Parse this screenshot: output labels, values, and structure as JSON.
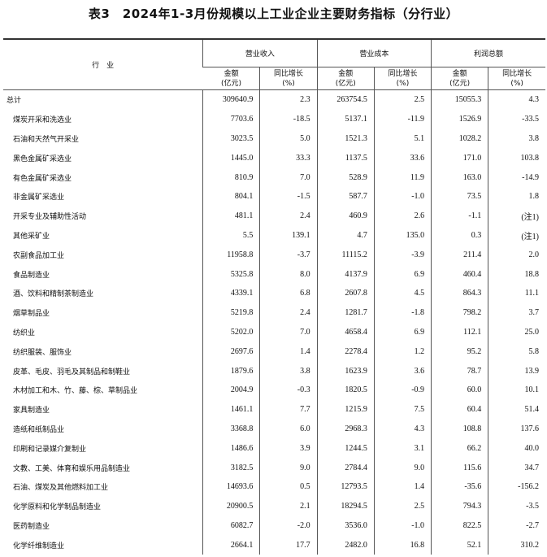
{
  "title": "表3　2024年1-3月份规模以上工业企业主要财务指标（分行业）",
  "header": {
    "industry": "行　业",
    "groups": [
      "营业收入",
      "营业成本",
      "利润总额"
    ],
    "amount": "金额",
    "amount_unit": "(亿元)",
    "growth": "同比增长",
    "growth_unit": "(%)"
  },
  "rows": [
    [
      "总计",
      "309640.9",
      "2.3",
      "263754.5",
      "2.5",
      "15055.3",
      "4.3"
    ],
    [
      "煤炭开采和洗选业",
      "7703.6",
      "-18.5",
      "5137.1",
      "-11.9",
      "1526.9",
      "-33.5"
    ],
    [
      "石油和天然气开采业",
      "3023.5",
      "5.0",
      "1521.3",
      "5.1",
      "1028.2",
      "3.8"
    ],
    [
      "黑色金属矿采选业",
      "1445.0",
      "33.3",
      "1137.5",
      "33.6",
      "171.0",
      "103.8"
    ],
    [
      "有色金属矿采选业",
      "810.9",
      "7.0",
      "528.9",
      "11.9",
      "163.0",
      "-14.9"
    ],
    [
      "非金属矿采选业",
      "804.1",
      "-1.5",
      "587.7",
      "-1.0",
      "73.5",
      "1.8"
    ],
    [
      "开采专业及辅助性活动",
      "481.1",
      "2.4",
      "460.9",
      "2.6",
      "-1.1",
      "(注1)"
    ],
    [
      "其他采矿业",
      "5.5",
      "139.1",
      "4.7",
      "135.0",
      "0.3",
      "(注1)"
    ],
    [
      "农副食品加工业",
      "11958.8",
      "-3.7",
      "11115.2",
      "-3.9",
      "211.4",
      "2.0"
    ],
    [
      "食品制造业",
      "5325.8",
      "8.0",
      "4137.9",
      "6.9",
      "460.4",
      "18.8"
    ],
    [
      "酒、饮料和精制茶制造业",
      "4339.1",
      "6.8",
      "2607.8",
      "4.5",
      "864.3",
      "11.1"
    ],
    [
      "烟草制品业",
      "5219.8",
      "2.4",
      "1281.7",
      "-1.8",
      "798.2",
      "3.7"
    ],
    [
      "纺织业",
      "5202.0",
      "7.0",
      "4658.4",
      "6.9",
      "112.1",
      "25.0"
    ],
    [
      "纺织服装、服饰业",
      "2697.6",
      "1.4",
      "2278.4",
      "1.2",
      "95.2",
      "5.8"
    ],
    [
      "皮革、毛皮、羽毛及其制品和制鞋业",
      "1879.6",
      "3.8",
      "1623.9",
      "3.6",
      "78.7",
      "13.9"
    ],
    [
      "木材加工和木、竹、藤、棕、草制品业",
      "2004.9",
      "-0.3",
      "1820.5",
      "-0.9",
      "60.0",
      "10.1"
    ],
    [
      "家具制造业",
      "1461.1",
      "7.7",
      "1215.9",
      "7.5",
      "60.4",
      "51.4"
    ],
    [
      "造纸和纸制品业",
      "3368.8",
      "6.0",
      "2968.3",
      "4.3",
      "108.8",
      "137.6"
    ],
    [
      "印刷和记录媒介复制业",
      "1486.6",
      "3.9",
      "1244.5",
      "3.1",
      "66.2",
      "40.0"
    ],
    [
      "文教、工美、体育和娱乐用品制造业",
      "3182.5",
      "9.0",
      "2784.4",
      "9.0",
      "115.6",
      "34.7"
    ],
    [
      "石油、煤炭及其他燃料加工业",
      "14693.6",
      "0.5",
      "12793.5",
      "1.4",
      "-35.6",
      "-156.2"
    ],
    [
      "化学原料和化学制品制造业",
      "20900.5",
      "2.1",
      "18294.5",
      "2.5",
      "794.3",
      "-3.5"
    ],
    [
      "医药制造业",
      "6082.7",
      "-2.0",
      "3536.0",
      "-1.0",
      "822.5",
      "-2.7"
    ],
    [
      "化学纤维制造业",
      "2664.1",
      "17.7",
      "2482.0",
      "16.8",
      "52.1",
      "310.2"
    ]
  ]
}
